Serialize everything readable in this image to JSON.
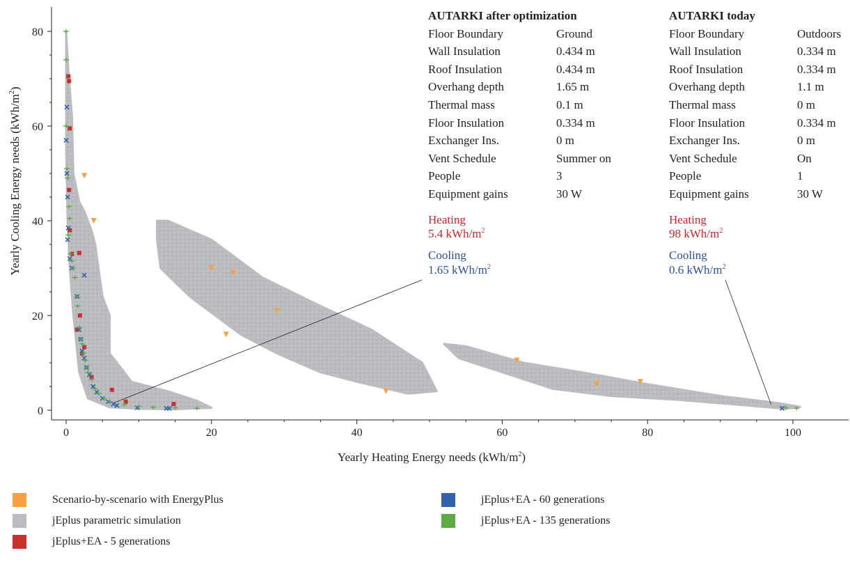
{
  "colors": {
    "scenario": "#f7a042",
    "jeplus": "#bcbdc0",
    "gen5": "#c7302b",
    "gen60": "#3362ad",
    "gen135": "#5eab45",
    "heating": "#d2232a",
    "cooling": "#2b4fa3",
    "axis": "#231f20"
  },
  "chart_data": {
    "type": "scatter",
    "xlabel": "Yearly Heating Energy needs (kWh/m",
    "ylabel": "Yearly Cooling Energy needs (kWh/m",
    "unit_sup": "2",
    "unit_close": ")",
    "xlim": [
      -2,
      104
    ],
    "ylim": [
      -2,
      84
    ],
    "xticks": [
      0,
      20,
      40,
      60,
      80,
      100
    ],
    "yticks": [
      0,
      20,
      40,
      60,
      80
    ],
    "xtick_labels": [
      "0",
      "20",
      "40",
      "60",
      "80",
      "100"
    ],
    "ytick_labels": [
      "0",
      "20",
      "40",
      "60",
      "80"
    ],
    "cloud_regions": [
      {
        "name": "jEplus parametric simulation",
        "series": "jeplus",
        "polygon": [
          [
            0,
            80
          ],
          [
            0.3,
            72
          ],
          [
            0.8,
            62
          ],
          [
            1,
            50
          ],
          [
            1.8,
            44
          ],
          [
            2.5,
            42
          ],
          [
            3.5,
            38
          ],
          [
            4,
            35
          ],
          [
            5,
            24
          ],
          [
            6,
            20
          ],
          [
            6,
            12
          ],
          [
            9,
            6
          ],
          [
            14,
            4
          ],
          [
            18,
            2
          ],
          [
            20,
            0.5
          ],
          [
            15,
            0.2
          ],
          [
            10,
            0.3
          ],
          [
            6,
            0.6
          ],
          [
            3,
            2.5
          ],
          [
            1.8,
            8
          ],
          [
            1,
            20
          ],
          [
            0.5,
            30
          ],
          [
            0.2,
            40
          ],
          [
            0,
            55
          ]
        ]
      },
      {
        "name": "jEplus parametric simulation",
        "series": "jeplus",
        "polygon": [
          [
            12.5,
            40
          ],
          [
            14,
            40
          ],
          [
            20,
            36
          ],
          [
            27,
            28
          ],
          [
            35,
            22
          ],
          [
            42,
            17
          ],
          [
            49,
            10
          ],
          [
            51,
            4
          ],
          [
            47,
            3.5
          ],
          [
            40,
            6
          ],
          [
            35,
            8
          ],
          [
            29,
            12
          ],
          [
            24,
            16
          ],
          [
            17,
            24
          ],
          [
            13,
            30
          ],
          [
            12.5,
            36
          ]
        ]
      },
      {
        "name": "jEplus parametric simulation",
        "series": "jeplus",
        "polygon": [
          [
            52,
            14
          ],
          [
            55,
            13.5
          ],
          [
            63,
            10
          ],
          [
            71,
            8
          ],
          [
            80,
            5.5
          ],
          [
            90,
            3
          ],
          [
            98,
            1.5
          ],
          [
            101,
            0.7
          ],
          [
            99,
            0.3
          ],
          [
            92,
            1.2
          ],
          [
            84,
            2.2
          ],
          [
            75,
            3
          ],
          [
            67,
            4.5
          ],
          [
            60,
            8
          ],
          [
            54,
            11
          ]
        ]
      }
    ],
    "series": [
      {
        "name": "Scenario-by-scenario with EnergyPlus",
        "key": "scenario",
        "marker": "triangle-down",
        "x": [
          3.8,
          2.5,
          44,
          62,
          73,
          79,
          22,
          20,
          23,
          29
        ],
        "y": [
          40,
          49.5,
          4,
          10.5,
          5.5,
          6,
          16,
          30,
          29,
          21
        ]
      },
      {
        "name": "jEplus+EA - 5 generations",
        "key": "gen5",
        "marker": "square",
        "x": [
          0.3,
          0.4,
          0.5,
          0.4,
          0.5,
          0.8,
          1.8,
          2.5,
          3.5,
          6.3,
          8.2,
          14.8,
          1.9,
          2.2,
          1.5
        ],
        "y": [
          70.5,
          69.5,
          59.5,
          46.5,
          38,
          33,
          33.2,
          13.3,
          7,
          4.3,
          1.8,
          1.3,
          20,
          12,
          17
        ]
      },
      {
        "name": "jEplus+EA - 60 generations",
        "key": "gen60",
        "marker": "x",
        "x": [
          0.1,
          0,
          0.1,
          0.2,
          0.3,
          0.2,
          0.5,
          0.8,
          1.5,
          1.8,
          2.0,
          2.2,
          2.5,
          2.8,
          3.2,
          3.7,
          4.2,
          5.0,
          5.8,
          6.5,
          7.0,
          9.8,
          13.8,
          14.2,
          98.5,
          2.5
        ],
        "y": [
          64,
          57,
          50,
          45,
          38.5,
          36,
          32,
          30,
          24,
          17,
          15,
          12.5,
          11,
          9,
          7.5,
          5,
          3.8,
          2.5,
          1.8,
          1.3,
          1.0,
          0.5,
          0.4,
          0.4,
          0.4,
          28.5
        ]
      },
      {
        "name": "jEplus+EA - 135 generations",
        "key": "gen135",
        "marker": "plus",
        "x": [
          0,
          0,
          0,
          0.1,
          0.2,
          0.4,
          0.5,
          0.3,
          0.6,
          0.8,
          1.0,
          1.2,
          1.5,
          1.6,
          1.8,
          2.0,
          2.2,
          2.4,
          2.6,
          2.8,
          3.0,
          3.5,
          4.0,
          4.5,
          5.2,
          6.0,
          8.0,
          10.0,
          12.0,
          15.0,
          18.0,
          99.0,
          100.5
        ],
        "y": [
          80,
          74,
          60,
          51,
          49,
          43,
          40.5,
          37,
          33,
          31.5,
          30,
          28,
          24,
          22,
          17.5,
          15,
          14,
          12,
          10.5,
          9,
          8,
          6.5,
          4.5,
          3.5,
          2.5,
          1.8,
          1.2,
          0.8,
          0.6,
          0.5,
          0.4,
          0.5,
          0.4
        ]
      }
    ],
    "annotations": [
      {
        "from": [
          6.5,
          1.5
        ],
        "to_label": "after"
      },
      {
        "from": [
          97,
          1.2
        ],
        "to_label": "today"
      }
    ]
  },
  "panel_after": {
    "title": "AUTARKI after optimization",
    "rows": [
      {
        "key": "Floor Boundary",
        "value": "Ground"
      },
      {
        "key": "Wall Insulation",
        "value": "0.434 m"
      },
      {
        "key": "Roof Insulation",
        "value": "0.434 m"
      },
      {
        "key": "Overhang depth",
        "value": "1.65 m"
      },
      {
        "key": "Thermal mass",
        "value": "0.1 m"
      },
      {
        "key": "Floor Insulation",
        "value": "0.334 m"
      },
      {
        "key": "Exchanger Ins.",
        "value": "0 m"
      },
      {
        "key": "Vent Schedule",
        "value": "Summer on"
      },
      {
        "key": "People",
        "value": "3"
      },
      {
        "key": "Equipment gains",
        "value": "30 W"
      }
    ],
    "heating_label": "Heating",
    "heating_value": "5.4 kWh/m",
    "cooling_label": "Cooling",
    "cooling_value": "1.65 kWh/m",
    "sup": "2"
  },
  "panel_today": {
    "title": "AUTARKI today",
    "rows": [
      {
        "key": "Floor Boundary",
        "value": "Outdoors"
      },
      {
        "key": "Wall Insulation",
        "value": "0.334 m"
      },
      {
        "key": "Roof Insulation",
        "value": "0.334 m"
      },
      {
        "key": "Overhang depth",
        "value": "1.1 m"
      },
      {
        "key": "Thermal mass",
        "value": "0 m"
      },
      {
        "key": "Floor Insulation",
        "value": "0.334 m"
      },
      {
        "key": "Exchanger Ins.",
        "value": "0 m"
      },
      {
        "key": "Vent Schedule",
        "value": "On"
      },
      {
        "key": "People",
        "value": "1"
      },
      {
        "key": "Equipment gains",
        "value": "30 W"
      }
    ],
    "heating_label": "Heating",
    "heating_value": "98 kWh/m",
    "cooling_label": "Cooling",
    "cooling_value": "0.6 kWh/m",
    "sup": "2"
  },
  "legend": {
    "items": [
      {
        "key": "scenario",
        "label": "Scenario-by-scenario with EnergyPlus"
      },
      {
        "key": "jeplus",
        "label": "jEplus parametric simulation"
      },
      {
        "key": "gen5",
        "label": "jEplus+EA - 5 generations"
      },
      {
        "key": "gen60",
        "label": "jEplus+EA - 60 generations"
      },
      {
        "key": "gen135",
        "label": "jEplus+EA - 135 generations"
      }
    ]
  }
}
